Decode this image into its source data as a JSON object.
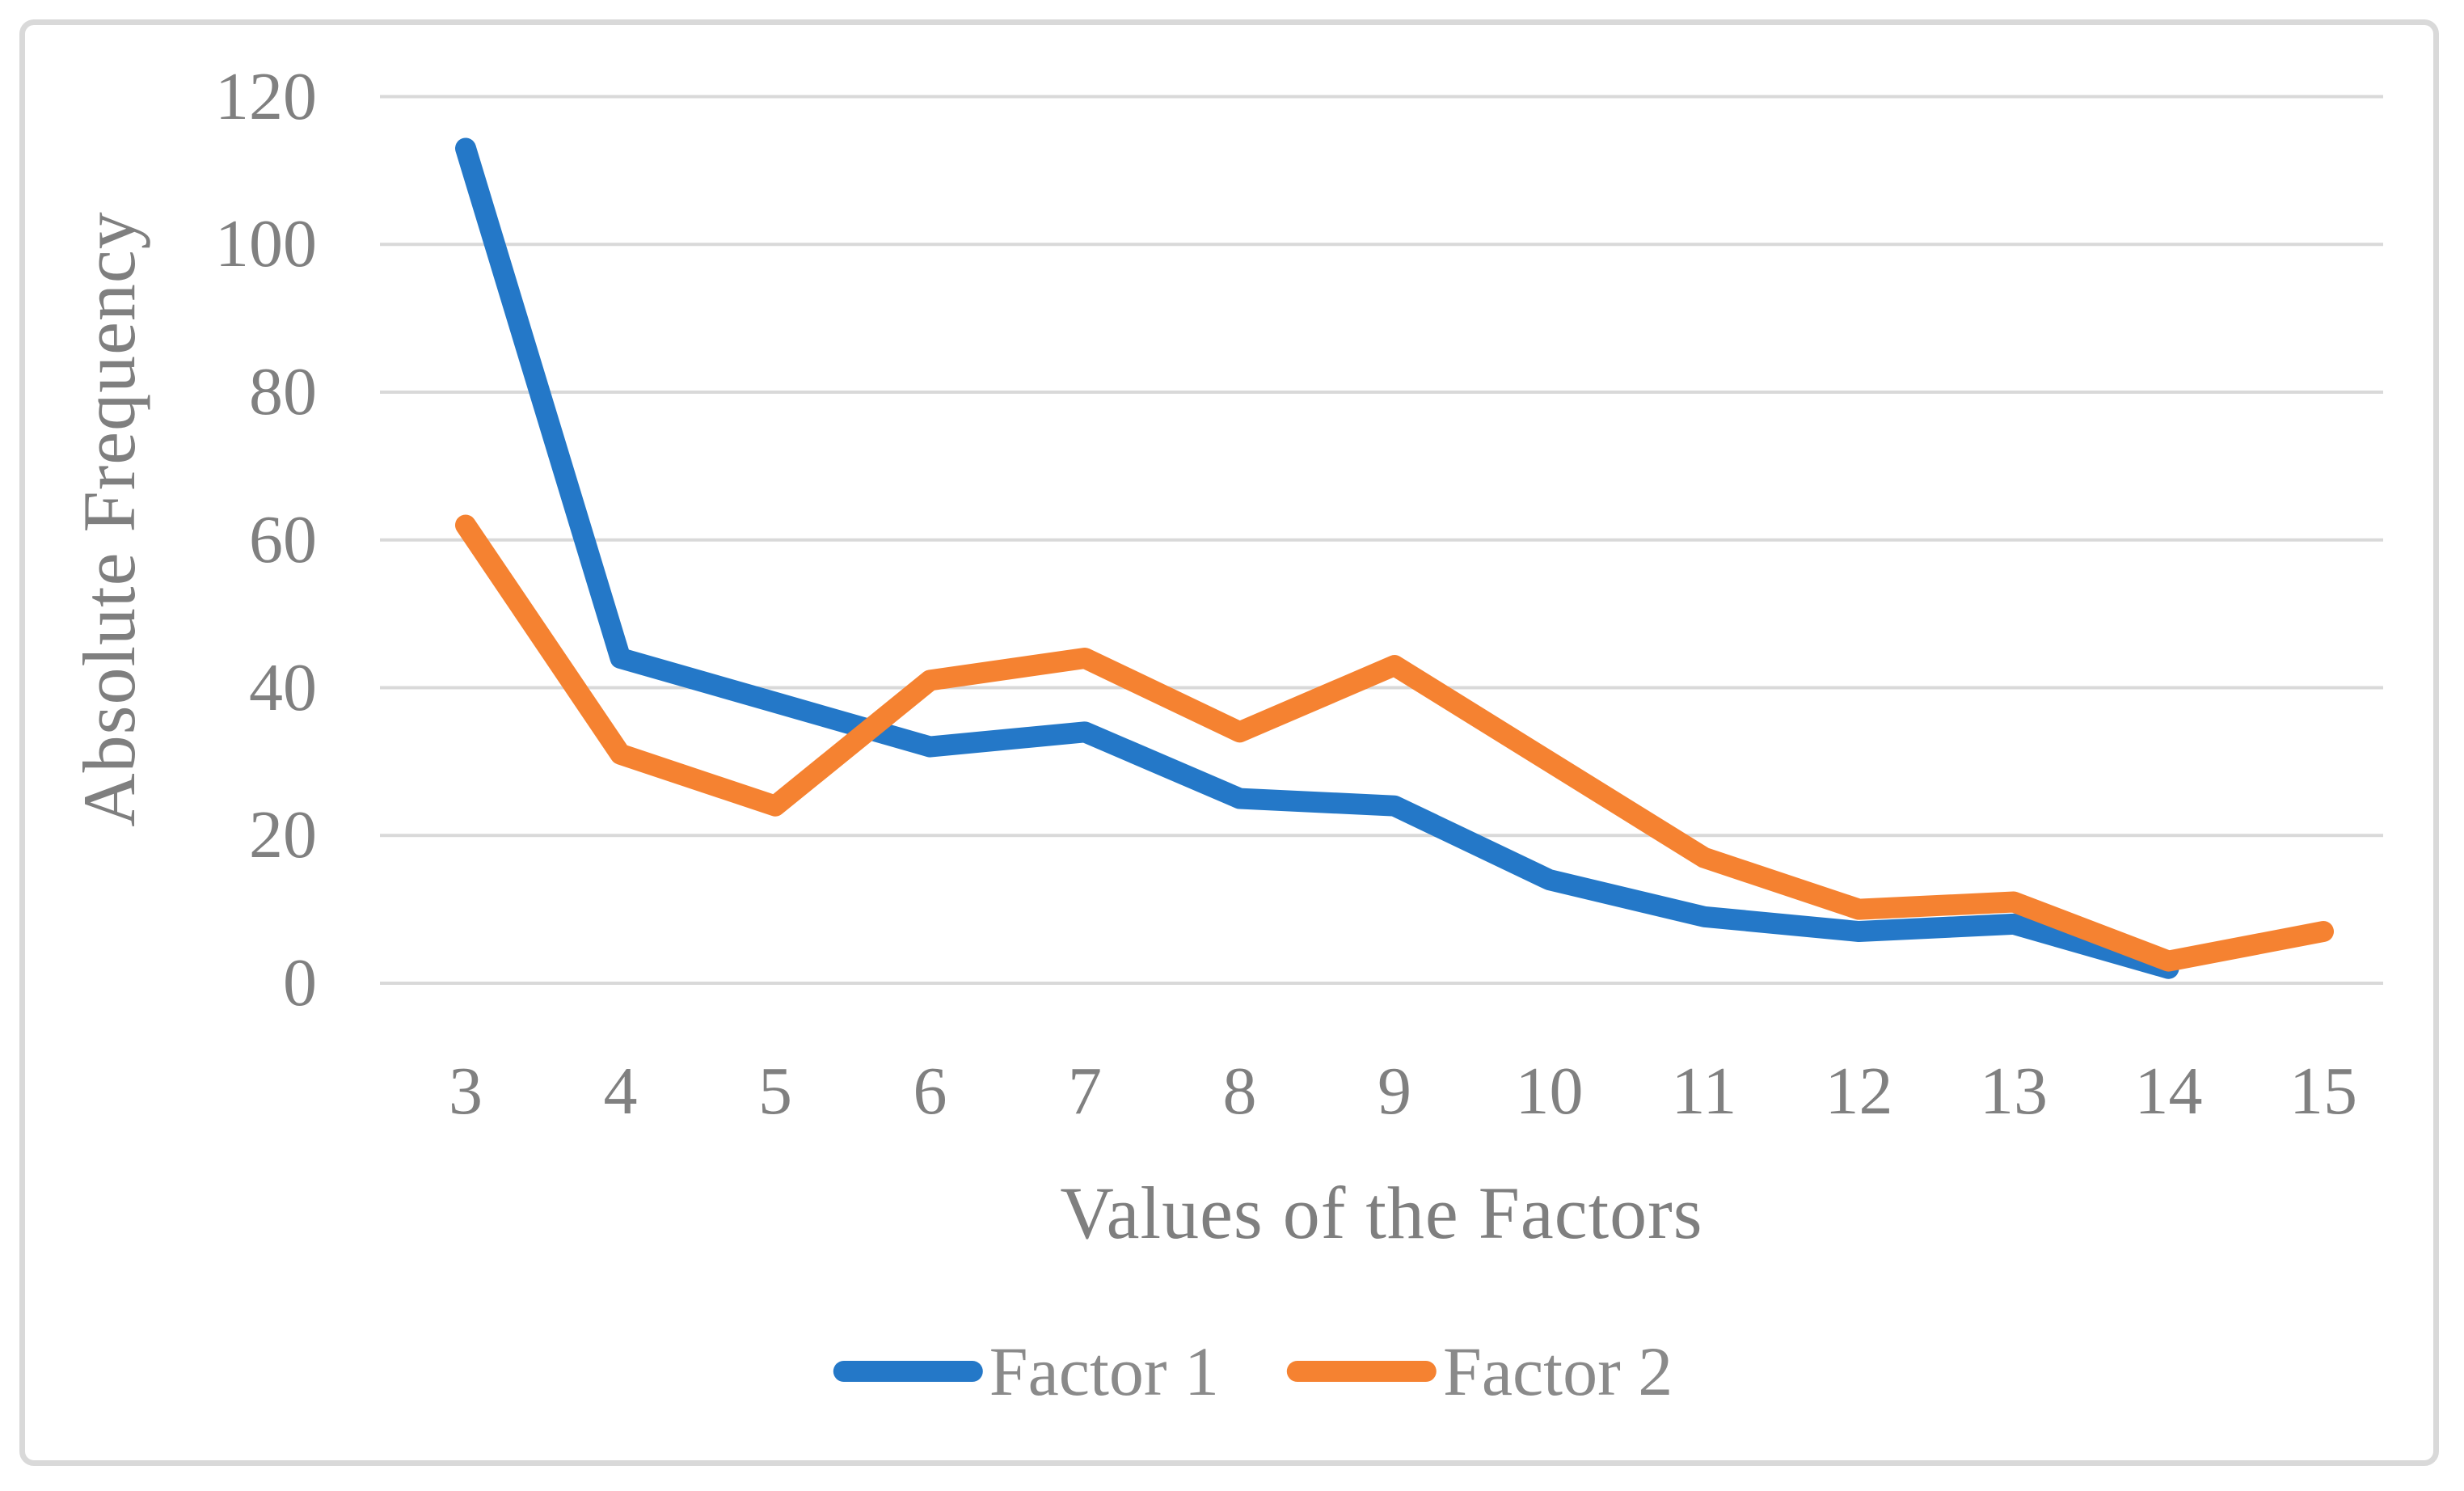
{
  "figure": {
    "background_color": "#ffffff",
    "border_color": "#d9d9d9",
    "gridline_color": "#d9d9d9",
    "text_color": "#7f7f7f"
  },
  "chart_data": {
    "type": "line",
    "title": "",
    "xlabel": "Values of the Factors",
    "ylabel": "Absolute Frequency",
    "x": [
      3,
      4,
      5,
      6,
      7,
      8,
      9,
      10,
      11,
      12,
      13,
      14,
      15
    ],
    "series": [
      {
        "name": "Factor 1",
        "color": "#2478c8",
        "values": [
          113,
          44,
          38,
          32,
          34,
          25,
          24,
          14,
          9,
          7,
          8,
          2,
          null
        ]
      },
      {
        "name": "Factor 2",
        "color": "#f58231",
        "values": [
          62,
          31,
          24,
          41,
          44,
          34,
          43,
          30,
          17,
          10,
          11,
          3,
          7
        ]
      }
    ],
    "ylim": [
      0,
      120
    ],
    "y_ticks": [
      0,
      20,
      40,
      60,
      80,
      100,
      120
    ],
    "grid": "horizontal",
    "legend_position": "bottom",
    "line_width": 26
  }
}
